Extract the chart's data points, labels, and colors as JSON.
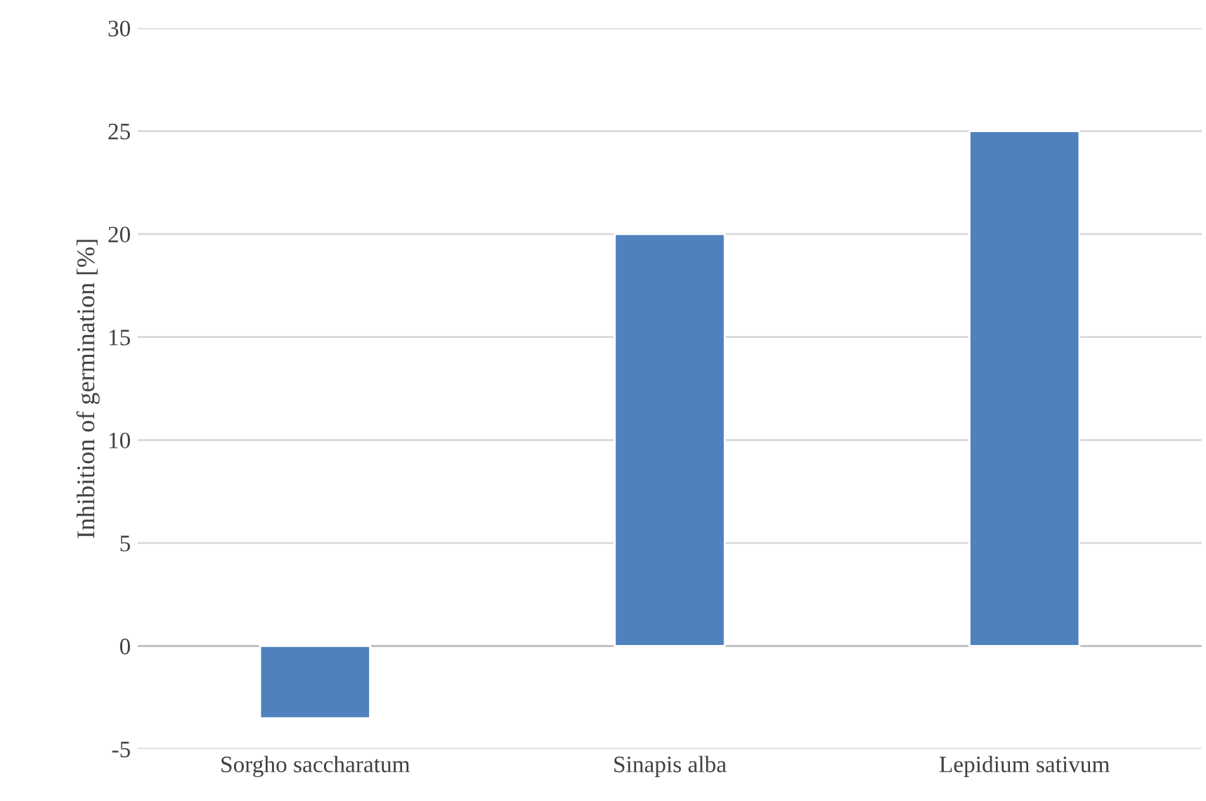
{
  "chart_data": {
    "type": "bar",
    "ylabel": "Inhibition of germination [%]",
    "categories": [
      "Sorgho saccharatum",
      "Sinapis alba",
      "Lepidium sativum"
    ],
    "values": [
      -3.5,
      20,
      25
    ],
    "color": "#4f81bd",
    "ylim": [
      -5,
      30
    ],
    "yticks": [
      -5,
      0,
      5,
      10,
      15,
      20,
      25,
      30
    ],
    "grid": "y"
  }
}
